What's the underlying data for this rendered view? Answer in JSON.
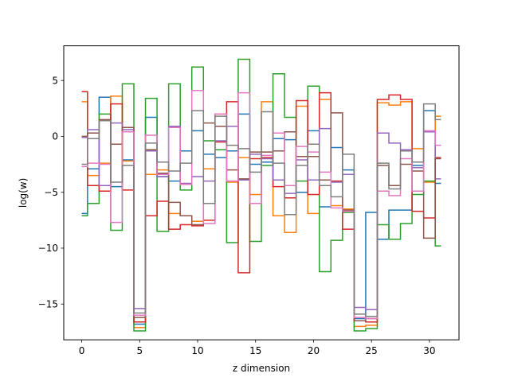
{
  "chart_data": {
    "type": "line",
    "drawstyle": "steps-mid",
    "xlabel": "z dimension",
    "ylabel": "log(w)",
    "xlim": [
      -1.55,
      32.55
    ],
    "ylim": [
      -18.2,
      8.1
    ],
    "xticks": [
      0,
      5,
      10,
      15,
      20,
      25,
      30
    ],
    "yticks": [
      -15,
      -10,
      -5,
      0,
      5
    ],
    "x": [
      0,
      1,
      2,
      3,
      4,
      5,
      6,
      7,
      8,
      9,
      10,
      11,
      12,
      13,
      14,
      15,
      16,
      17,
      18,
      19,
      20,
      21,
      22,
      23,
      24,
      25,
      26,
      27,
      28,
      29,
      30,
      31
    ],
    "series": [
      {
        "color": "#1f77b4",
        "values": [
          -6.9,
          -2.9,
          3.5,
          -4.5,
          -2.1,
          -16.8,
          1.7,
          -3.6,
          -4.0,
          -1.3,
          0.5,
          -1.6,
          -1.9,
          -1.3,
          2.0,
          -2.5,
          -2.3,
          -0.2,
          -0.3,
          -5.0,
          0.5,
          -6.3,
          -1.0,
          -3.0,
          -16.3,
          -6.8,
          -9.2,
          -6.6,
          -6.6,
          -2.6,
          2.3,
          -4.2
        ]
      },
      {
        "color": "#ff7f0e",
        "values": [
          3.1,
          -3.5,
          -2.4,
          3.6,
          -2.2,
          -17.1,
          -3.4,
          -3.0,
          -6.9,
          -7.1,
          -7.6,
          -2.9,
          2.0,
          -4.1,
          -1.9,
          -5.2,
          3.1,
          -7.1,
          -8.6,
          2.7,
          -6.9,
          3.3,
          -6.2,
          -6.5,
          -17.0,
          -16.9,
          3.0,
          2.8,
          3.1,
          -1.1,
          -4.1,
          1.8
        ]
      },
      {
        "color": "#2ca02c",
        "values": [
          -7.1,
          -6.0,
          2.0,
          -8.4,
          4.7,
          -17.4,
          3.4,
          -8.5,
          4.7,
          -4.8,
          6.2,
          -0.4,
          -1.2,
          -9.5,
          6.9,
          -9.4,
          -2.6,
          5.6,
          1.7,
          -4.0,
          4.5,
          -12.1,
          -9.3,
          -6.8,
          -17.4,
          -17.2,
          -7.9,
          -9.2,
          -7.8,
          -5.2,
          -4.0,
          -9.8
        ]
      },
      {
        "color": "#d62728",
        "values": [
          4.0,
          -4.4,
          -4.9,
          2.9,
          -4.8,
          -16.6,
          -7.1,
          -5.8,
          -8.3,
          -7.9,
          -8.0,
          -7.5,
          -0.5,
          3.1,
          -12.2,
          -2.0,
          -1.9,
          -4.5,
          -5.5,
          3.2,
          -5.2,
          3.9,
          -4.0,
          -8.3,
          -16.5,
          -16.6,
          3.3,
          3.7,
          3.3,
          -6.7,
          -7.3,
          -1.9
        ]
      },
      {
        "color": "#9467bd",
        "values": [
          -0.1,
          0.6,
          -4.4,
          1.2,
          0.6,
          -15.4,
          -1.3,
          -3.6,
          0.9,
          -4.2,
          -3.6,
          -4.0,
          -0.4,
          0.9,
          -3.9,
          -1.6,
          -2.0,
          -3.9,
          -5.1,
          -2.1,
          -3.9,
          0.7,
          -4.1,
          -3.4,
          -15.3,
          -15.5,
          0.3,
          -0.6,
          -1.2,
          -2.8,
          0.4,
          -3.8
        ]
      },
      {
        "color": "#8c564b",
        "values": [
          0.0,
          0.3,
          1.5,
          -0.7,
          0.8,
          -16.2,
          -1.2,
          -3.3,
          -5.9,
          -7.1,
          -7.9,
          1.2,
          0.9,
          -3.0,
          -3.8,
          -1.4,
          -1.4,
          -1.3,
          0.4,
          -1.8,
          -1.8,
          -3.9,
          2.1,
          -6.6,
          -16.5,
          -16.3,
          -2.6,
          -4.4,
          -2.5,
          -3.1,
          -9.1,
          -2.0
        ]
      },
      {
        "color": "#e377c2",
        "values": [
          -2.7,
          -2.4,
          -2.5,
          -7.7,
          0.4,
          -16.0,
          0.1,
          -3.4,
          0.8,
          -4.3,
          4.1,
          -7.8,
          2.0,
          -4.0,
          3.9,
          -6.0,
          -1.7,
          0.3,
          -4.4,
          -0.9,
          -1.4,
          -3.2,
          -6.4,
          -6.7,
          -16.2,
          -16.3,
          -4.9,
          -5.3,
          -2.0,
          -4.9,
          0.5,
          -0.8
        ]
      },
      {
        "color": "#7f7f7f",
        "values": [
          -2.5,
          -0.2,
          1.4,
          -4.1,
          -2.6,
          -15.8,
          -0.6,
          -2.3,
          -3.1,
          -2.4,
          2.3,
          -6.0,
          1.8,
          -0.8,
          -1.1,
          -3.2,
          2.2,
          -2.4,
          -7.0,
          -2.6,
          -0.7,
          -4.4,
          -5.4,
          -1.6,
          -15.9,
          -16.1,
          -2.4,
          -4.7,
          -1.3,
          -2.3,
          2.9,
          1.5
        ]
      }
    ]
  }
}
